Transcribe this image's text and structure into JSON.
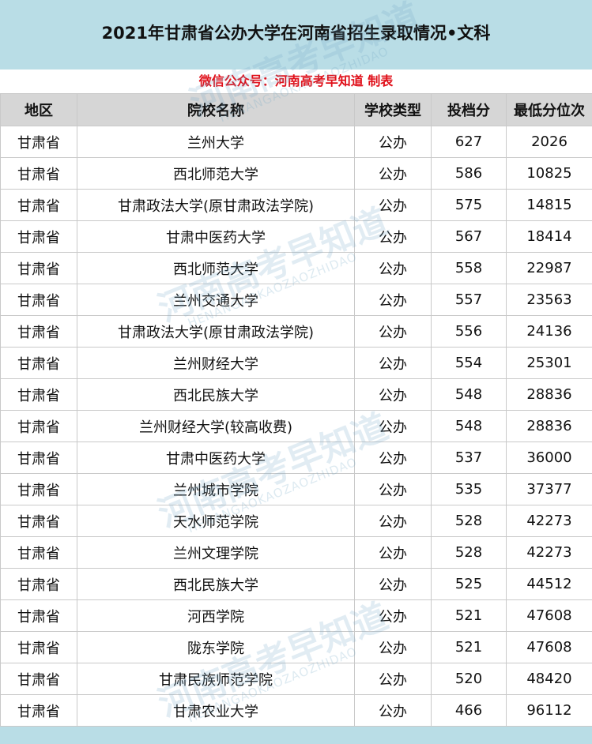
{
  "header": {
    "title": "2021年甘肃省公办大学在河南省招生录取情况•文科",
    "subtitle": "微信公众号：河南高考早知道 制表"
  },
  "watermark": {
    "name": "河南高考早知道",
    "pinyin": "HENANGAOKAOZAOZHIDAO"
  },
  "table": {
    "columns": [
      "地区",
      "院校名称",
      "学校类型",
      "投档分",
      "最低分位次"
    ],
    "rows": [
      [
        "甘肃省",
        "兰州大学",
        "公办",
        627,
        2026
      ],
      [
        "甘肃省",
        "西北师范大学",
        "公办",
        586,
        10825
      ],
      [
        "甘肃省",
        "甘肃政法大学(原甘肃政法学院)",
        "公办",
        575,
        14815
      ],
      [
        "甘肃省",
        "甘肃中医药大学",
        "公办",
        567,
        18414
      ],
      [
        "甘肃省",
        "西北师范大学",
        "公办",
        558,
        22987
      ],
      [
        "甘肃省",
        "兰州交通大学",
        "公办",
        557,
        23563
      ],
      [
        "甘肃省",
        "甘肃政法大学(原甘肃政法学院)",
        "公办",
        556,
        24136
      ],
      [
        "甘肃省",
        "兰州财经大学",
        "公办",
        554,
        25301
      ],
      [
        "甘肃省",
        "西北民族大学",
        "公办",
        548,
        28836
      ],
      [
        "甘肃省",
        "兰州财经大学(较高收费)",
        "公办",
        548,
        28836
      ],
      [
        "甘肃省",
        "甘肃中医药大学",
        "公办",
        537,
        36000
      ],
      [
        "甘肃省",
        "兰州城市学院",
        "公办",
        535,
        37377
      ],
      [
        "甘肃省",
        "天水师范学院",
        "公办",
        528,
        42273
      ],
      [
        "甘肃省",
        "兰州文理学院",
        "公办",
        528,
        42273
      ],
      [
        "甘肃省",
        "西北民族大学",
        "公办",
        525,
        44512
      ],
      [
        "甘肃省",
        "河西学院",
        "公办",
        521,
        47608
      ],
      [
        "甘肃省",
        "陇东学院",
        "公办",
        521,
        47608
      ],
      [
        "甘肃省",
        "甘肃民族师范学院",
        "公办",
        520,
        48420
      ],
      [
        "甘肃省",
        "甘肃农业大学",
        "公办",
        466,
        96112
      ]
    ]
  }
}
